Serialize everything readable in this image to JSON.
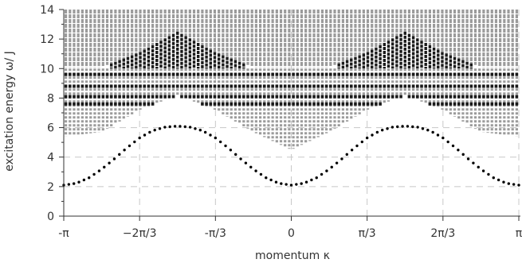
{
  "chart_data": {
    "type": "scatter",
    "title": "",
    "xlabel": "momentum κ",
    "ylabel": "excitation energy ω/ J",
    "xlim": [
      -3.14159,
      3.14159
    ],
    "ylim": [
      0,
      14
    ],
    "grid": "dashed vertical at multiples of π/3, dashed horizontal at 2, 4, 6",
    "x_ticks": [
      {
        "value": -3.14159,
        "label": "-π"
      },
      {
        "value": -2.0944,
        "label": "−2π/3"
      },
      {
        "value": -1.0472,
        "label": "-π/3"
      },
      {
        "value": 0,
        "label": "0"
      },
      {
        "value": 1.0472,
        "label": "π/3"
      },
      {
        "value": 2.0944,
        "label": "2π/3"
      },
      {
        "value": 3.14159,
        "label": "π"
      }
    ],
    "y_ticks": [
      0,
      2,
      4,
      6,
      8,
      10,
      12,
      14
    ],
    "colors": {
      "bound_state": "#000000",
      "continuum_gray": "#9b9b9b",
      "continuum_dark": "#1a1a1a",
      "grid": "#c8c8c8"
    },
    "series": [
      {
        "kind": "lowest_branch",
        "color": "#000000",
        "x": [
          -3.1416,
          -2.9671,
          -2.7925,
          -2.618,
          -2.4435,
          -2.2689,
          -2.0944,
          -1.9199,
          -1.7453,
          -1.5708,
          -1.3963,
          -1.2217,
          -1.0472,
          -0.8727,
          -0.6981,
          -0.5236,
          -0.3491,
          -0.1745,
          0.0,
          0.1745,
          0.3491,
          0.5236,
          0.6981,
          0.8727,
          1.0472,
          1.2217,
          1.3963,
          1.5708,
          1.7453,
          1.9199,
          2.0944,
          2.2689,
          2.4435,
          2.618,
          2.7925,
          2.9671,
          3.1416
        ],
        "y": [
          2.1,
          2.23,
          2.6,
          3.18,
          3.88,
          4.63,
          5.3,
          5.78,
          6.03,
          6.1,
          6.03,
          5.78,
          5.3,
          4.63,
          3.88,
          3.18,
          2.6,
          2.23,
          2.1,
          2.23,
          2.6,
          3.18,
          3.88,
          4.63,
          5.3,
          5.78,
          6.03,
          6.1,
          6.03,
          5.78,
          5.3,
          4.63,
          3.88,
          3.18,
          2.6,
          2.23,
          2.1
        ]
      },
      {
        "kind": "continuum_lower_edge",
        "color": "#9b9b9b",
        "x": [
          -3.1416,
          -2.618,
          -2.0944,
          -1.5708,
          -1.0472,
          -0.5236,
          0.0,
          0.5236,
          1.0472,
          1.5708,
          2.0944,
          2.618,
          3.1416
        ],
        "y": [
          5.4,
          5.7,
          7.2,
          8.2,
          7.2,
          5.7,
          4.5,
          5.7,
          7.2,
          8.2,
          7.2,
          5.7,
          5.4
        ]
      },
      {
        "kind": "dark_peak_upper_edge",
        "color": "#1a1a1a",
        "x": [
          -3.1416,
          -2.618,
          -2.0944,
          -1.5708,
          -1.0472,
          -0.5236,
          0.0,
          0.5236,
          1.0472,
          1.5708,
          2.0944,
          2.618,
          3.1416
        ],
        "y": [
          9.9,
          10.1,
          11.1,
          12.5,
          11.1,
          10.1,
          10.0,
          10.1,
          11.1,
          12.5,
          11.1,
          10.1,
          9.9
        ]
      },
      {
        "kind": "upper_continuum_edge",
        "color": "#9b9b9b",
        "x": [
          -3.1416,
          3.1416
        ],
        "y": [
          14,
          14
        ]
      }
    ]
  }
}
